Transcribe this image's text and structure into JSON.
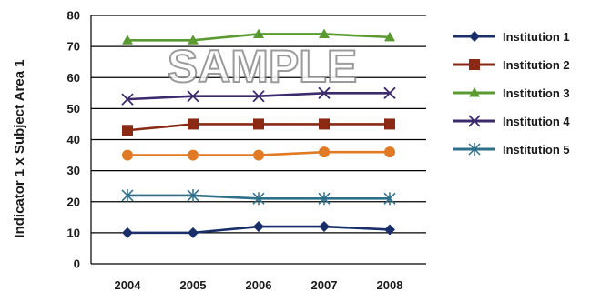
{
  "chart_data": {
    "type": "line",
    "categories": [
      "2004",
      "2005",
      "2006",
      "2007",
      "2008"
    ],
    "ylabel": "Indicator 1 x Subject Area 1",
    "xlabel": "",
    "ylim": [
      0,
      80
    ],
    "yticks": [
      0,
      10,
      20,
      30,
      40,
      50,
      60,
      70,
      80
    ],
    "grid": "horizontal",
    "legend_position": "right",
    "watermark": "SAMPLE",
    "series": [
      {
        "name": "Institution 3",
        "values": [
          72,
          72,
          74,
          74,
          73
        ],
        "color": "#5a9a30",
        "marker": "triangle",
        "in_legend": true
      },
      {
        "name": "Institution 4",
        "values": [
          53,
          54,
          54,
          55,
          55
        ],
        "color": "#3c2a6c",
        "marker": "x",
        "in_legend": true
      },
      {
        "name": "Institution 2",
        "values": [
          43,
          45,
          45,
          45,
          45
        ],
        "color": "#8a2a15",
        "marker": "square",
        "in_legend": true
      },
      {
        "name": "",
        "values": [
          35,
          35,
          35,
          36,
          36
        ],
        "color": "#e07a25",
        "marker": "circle",
        "in_legend": false
      },
      {
        "name": "Institution 5",
        "values": [
          22,
          22,
          21,
          21,
          21
        ],
        "color": "#2e6f8a",
        "marker": "asterisk",
        "in_legend": true
      },
      {
        "name": "Institution 1",
        "values": [
          10,
          10,
          12,
          12,
          11
        ],
        "color": "#1a2f6a",
        "marker": "diamond",
        "in_legend": true
      }
    ],
    "legend": [
      {
        "name": "Institution 1",
        "color": "#1a2f6a",
        "marker": "diamond"
      },
      {
        "name": "Institution 2",
        "color": "#8a2a15",
        "marker": "square"
      },
      {
        "name": "Institution 3",
        "color": "#5a9a30",
        "marker": "triangle"
      },
      {
        "name": "Institution 4",
        "color": "#3c2a6c",
        "marker": "x"
      },
      {
        "name": "Institution 5",
        "color": "#2e6f8a",
        "marker": "asterisk"
      }
    ]
  }
}
